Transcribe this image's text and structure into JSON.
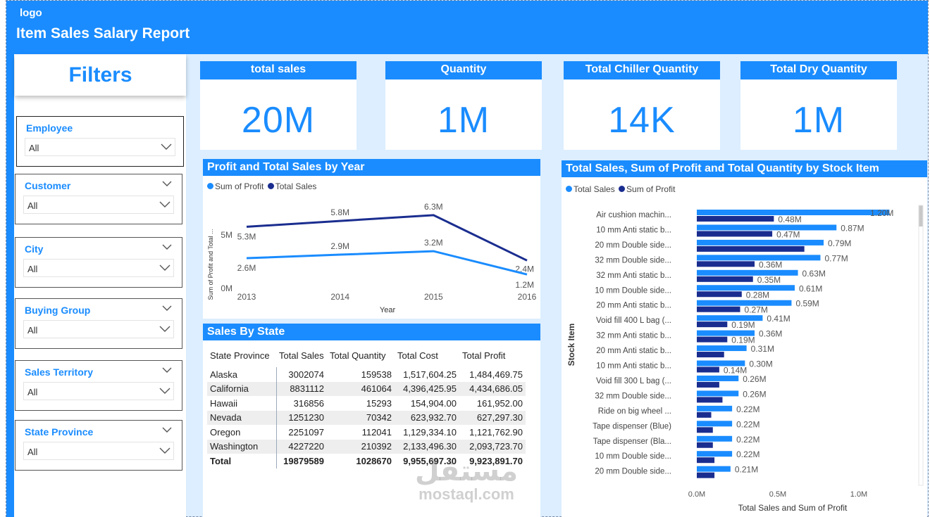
{
  "header": {
    "logo": "logo",
    "title": "Item Sales Salary Report"
  },
  "colors": {
    "accent": "#1a8cff",
    "dark_series": "#1a2d8f",
    "light_series": "#1a8cff"
  },
  "filters": {
    "title": "Filters",
    "slicers": [
      {
        "label": "Employee",
        "value": "All"
      },
      {
        "label": "Customer",
        "value": "All"
      },
      {
        "label": "City",
        "value": "All"
      },
      {
        "label": "Buying Group",
        "value": "All"
      },
      {
        "label": "Sales Territory",
        "value": "All"
      },
      {
        "label": "State Province",
        "value": "All"
      }
    ]
  },
  "cards": [
    {
      "title": "total sales",
      "value": "20M"
    },
    {
      "title": "Quantity",
      "value": "1M"
    },
    {
      "title": "Total Chiller Quantity",
      "value": "14K"
    },
    {
      "title": "Total Dry Quantity",
      "value": "1M"
    }
  ],
  "profit_chart": {
    "title": "Profit and Total Sales by Year",
    "legend": [
      "Sum of Profit",
      "Total Sales"
    ],
    "ylabel": "Sum of Profit and Total ...",
    "xlabel": "Year",
    "yticks": [
      "5M",
      "0M"
    ]
  },
  "stock_chart": {
    "title": "Total Sales, Sum of Profit and Total Quantity by Stock Item",
    "legend": [
      "Total Sales",
      "Sum of Profit"
    ],
    "ylabel": "Stock Item",
    "xlabel": "Total Sales and Sum of Profit",
    "xticks": [
      "0.0M",
      "0.5M",
      "1.0M"
    ]
  },
  "chart_data": [
    {
      "type": "line",
      "title": "Profit and Total Sales by Year",
      "x": [
        2013,
        2014,
        2015,
        2016
      ],
      "xlabel": "Year",
      "ylabel": "Sum of Profit and Total ...",
      "series": [
        {
          "name": "Total Sales",
          "values": [
            5.3,
            5.8,
            6.3,
            2.4
          ],
          "labels": [
            "5.3M",
            "5.8M",
            "6.3M",
            "2.4M"
          ]
        },
        {
          "name": "Sum of Profit",
          "values": [
            2.6,
            2.9,
            3.2,
            1.2
          ],
          "labels": [
            "2.6M",
            "2.9M",
            "3.2M",
            "1.2M"
          ]
        }
      ],
      "ylim": [
        0,
        7.5
      ]
    },
    {
      "type": "bar",
      "orientation": "horizontal",
      "title": "Total Sales, Sum of Profit and Total Quantity by Stock Item",
      "categories": [
        "Air cushion machin...",
        "10 mm Anti static b...",
        "20 mm Double side...",
        "32 mm Double side...",
        "32 mm Anti static b...",
        "10 mm Double side...",
        "20 mm Anti static b...",
        "Void fill 400 L bag (...",
        "32 mm Anti static b...",
        "20 mm Anti static b...",
        "10 mm Anti static b...",
        "Void fill 300 L bag (...",
        "32 mm Double side...",
        "Ride on big wheel ...",
        "Tape dispenser (Blue)",
        "Tape dispenser (Bla...",
        "10 mm Double side...",
        "20 mm Double side..."
      ],
      "series": [
        {
          "name": "Total Sales",
          "values": [
            1.2,
            0.87,
            0.79,
            0.77,
            0.63,
            0.61,
            0.59,
            0.41,
            0.36,
            0.31,
            0.3,
            0.26,
            0.26,
            0.22,
            0.22,
            0.22,
            0.22,
            0.21
          ],
          "labels": [
            "1.20M",
            "0.87M",
            "0.79M",
            "0.77M",
            "0.63M",
            "0.61M",
            "0.59M",
            "0.41M",
            "0.36M",
            "0.31M",
            "0.30M",
            "0.26M",
            "0.26M",
            "0.22M",
            "0.22M",
            "0.22M",
            "0.22M",
            "0.21M"
          ]
        },
        {
          "name": "Sum of Profit",
          "values": [
            0.48,
            0.47,
            0.67,
            0.36,
            0.35,
            0.28,
            0.27,
            0.19,
            0.19,
            0.17,
            0.14,
            0.14,
            0.16,
            0.09,
            0.1,
            0.1,
            0.11,
            0.11
          ],
          "labels": [
            "0.48M",
            "0.47M",
            "",
            "0.36M",
            "0.35M",
            "0.28M",
            "0.27M",
            "0.19M",
            "0.19M",
            "",
            "0.14M",
            "",
            "",
            "",
            "",
            "",
            "",
            ""
          ]
        }
      ],
      "xlim": [
        0,
        1.22
      ],
      "xlabel": "Total Sales and Sum of Profit",
      "ylabel": "Stock Item"
    },
    {
      "type": "table",
      "title": "Sales By State",
      "columns": [
        "State Province",
        "Total Sales",
        "Total Quantity",
        "Total Cost",
        "Total Profit"
      ],
      "rows": [
        [
          "Alaska",
          "3002074",
          "159538",
          "1,517,604.25",
          "1,484,469.75"
        ],
        [
          "California",
          "8831112",
          "461064",
          "4,396,425.95",
          "4,434,686.05"
        ],
        [
          "Hawaii",
          "316856",
          "15293",
          "154,904.00",
          "161,952.00"
        ],
        [
          "Nevada",
          "1251230",
          "70342",
          "623,932.70",
          "627,297.30"
        ],
        [
          "Oregon",
          "2251097",
          "112041",
          "1,129,334.10",
          "1,121,762.90"
        ],
        [
          "Washington",
          "4227220",
          "210392",
          "2,133,496.30",
          "2,093,723.70"
        ]
      ],
      "total": [
        "Total",
        "19879589",
        "1028670",
        "9,955,697.30",
        "9,923,891.70"
      ]
    }
  ],
  "watermark": {
    "arabic": "مستقل",
    "latin": "mostaql.com"
  }
}
